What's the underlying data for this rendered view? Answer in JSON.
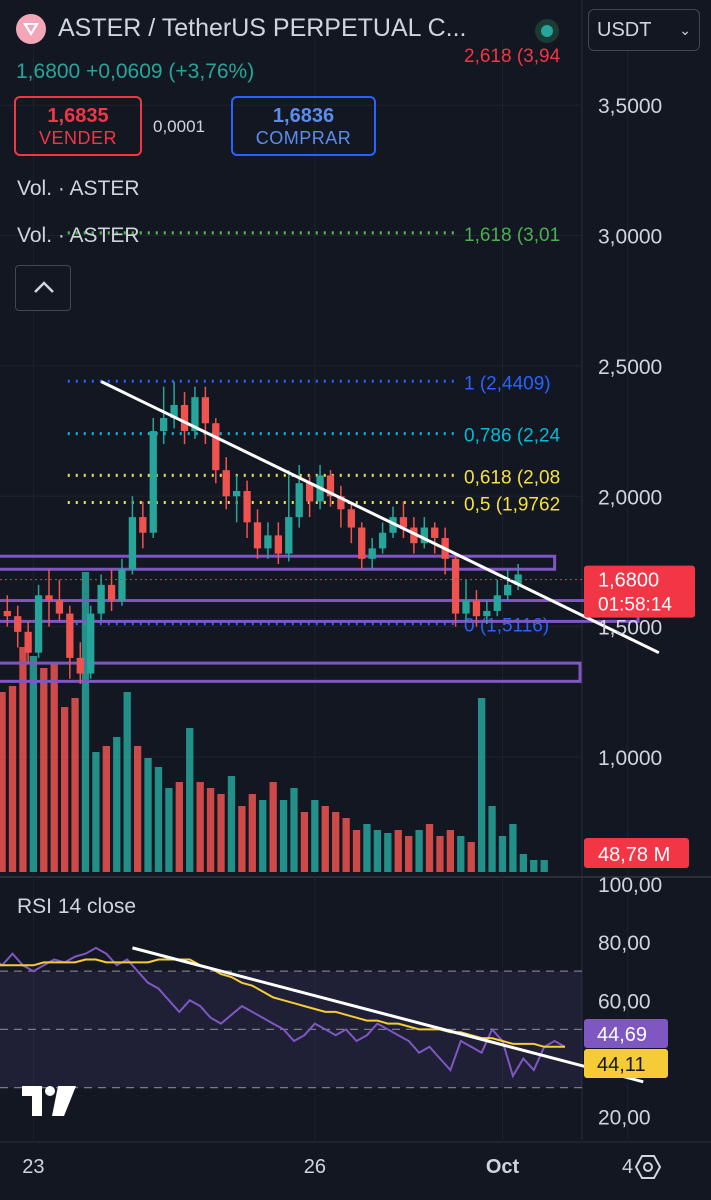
{
  "header": {
    "symbol_title": "ASTER / TetherUS PERPETUAL C...",
    "currency": "USDT",
    "last_and_change": "1,6800  +0,0609 (+3,76%)",
    "sell_price": "1,6835",
    "sell_label": "VENDER",
    "buy_price": "1,6836",
    "buy_label": "COMPRAR",
    "spread": "0,0001"
  },
  "indicators": {
    "vol_label_1": "Vol. · ASTER",
    "vol_label_2": "Vol. · ASTER",
    "rsi_title": "RSI 14 close"
  },
  "colors": {
    "up": "#26a69a",
    "down": "#ef5350",
    "bg": "#131722",
    "zone": "#7e57c2",
    "rsi": "#7e57c2",
    "rsi_ma": "#f5cc38"
  },
  "chart_data": {
    "type": "candlestick",
    "price_axis": {
      "ticks": [
        1.0,
        1.5,
        2.0,
        2.5,
        3.0,
        3.5
      ],
      "tick_labels": [
        "1,0000",
        "1,5000",
        "2,0000",
        "2,5000",
        "3,0000",
        "3,5000"
      ],
      "range": [
        0.95,
        3.75
      ]
    },
    "time_axis": {
      "labels": [
        {
          "label": "23",
          "t": 0
        },
        {
          "label": "26",
          "t": 27
        },
        {
          "label": "Oct",
          "t": 45
        },
        {
          "label": "4",
          "t": 57
        }
      ],
      "range": [
        -3.2,
        65
      ]
    },
    "last_price": {
      "value": 1.68,
      "label": "1,6800",
      "countdown": "01:58:14"
    },
    "fib_levels": [
      {
        "value": 3.94,
        "label": "2,618 (3,94",
        "color": "#f23645"
      },
      {
        "value": 3.01,
        "label": "1,618 (3,01",
        "color": "#4caf50"
      },
      {
        "value": 2.4409,
        "label": "1 (2,4409)",
        "color": "#2962ff"
      },
      {
        "value": 2.24,
        "label": "0,786 (2,24",
        "color": "#00bcd4"
      },
      {
        "value": 2.08,
        "label": "0,618 (2,08",
        "color": "#f5e142"
      },
      {
        "value": 1.9762,
        "label": "0,5 (1,9762",
        "color": "#f5e142"
      },
      {
        "value": 1.5116,
        "label": "0 (1,5116)",
        "color": "#2962ff"
      }
    ],
    "zones": [
      {
        "low": 1.72,
        "high": 1.77,
        "t_end": 50
      },
      {
        "low": 1.52,
        "high": 1.6,
        "t_end": 58
      },
      {
        "low": 1.29,
        "high": 1.36,
        "t_end": 74
      }
    ],
    "trendline": {
      "start": [
        6.5,
        2.44
      ],
      "end": [
        60,
        1.4
      ]
    },
    "candles": [
      [
        1.56,
        1.54,
        1.62,
        1.5
      ],
      [
        1.54,
        1.48,
        1.58,
        1.42
      ],
      [
        1.48,
        1.4,
        1.52,
        1.36
      ],
      [
        1.4,
        1.62,
        1.66,
        1.38
      ],
      [
        1.62,
        1.6,
        1.72,
        1.5
      ],
      [
        1.6,
        1.55,
        1.68,
        1.52
      ],
      [
        1.55,
        1.38,
        1.58,
        1.3
      ],
      [
        1.38,
        1.32,
        1.44,
        1.28
      ],
      [
        1.32,
        1.55,
        1.58,
        1.3
      ],
      [
        1.55,
        1.66,
        1.7,
        1.52
      ],
      [
        1.66,
        1.6,
        1.72,
        1.56
      ],
      [
        1.6,
        1.72,
        1.76,
        1.58
      ],
      [
        1.72,
        1.92,
        2.0,
        1.7
      ],
      [
        1.92,
        1.86,
        1.98,
        1.8
      ],
      [
        1.86,
        2.25,
        2.3,
        1.84
      ],
      [
        2.25,
        2.3,
        2.42,
        2.2
      ],
      [
        2.3,
        2.35,
        2.44,
        2.26
      ],
      [
        2.35,
        2.25,
        2.4,
        2.2
      ],
      [
        2.25,
        2.38,
        2.42,
        2.22
      ],
      [
        2.38,
        2.28,
        2.42,
        2.2
      ],
      [
        2.28,
        2.1,
        2.3,
        2.05
      ],
      [
        2.1,
        2.0,
        2.15,
        1.95
      ],
      [
        2.0,
        2.02,
        2.08,
        1.9
      ],
      [
        2.02,
        1.9,
        2.06,
        1.84
      ],
      [
        1.9,
        1.8,
        1.95,
        1.76
      ],
      [
        1.8,
        1.85,
        1.9,
        1.76
      ],
      [
        1.85,
        1.78,
        1.9,
        1.74
      ],
      [
        1.78,
        1.92,
        2.1,
        1.75
      ],
      [
        1.92,
        2.05,
        2.12,
        1.88
      ],
      [
        2.05,
        1.98,
        2.08,
        1.92
      ],
      [
        1.98,
        2.08,
        2.12,
        1.95
      ],
      [
        2.08,
        2.0,
        2.1,
        1.96
      ],
      [
        2.0,
        1.95,
        2.04,
        1.88
      ],
      [
        1.95,
        1.88,
        1.98,
        1.82
      ],
      [
        1.88,
        1.76,
        1.9,
        1.72
      ],
      [
        1.76,
        1.8,
        1.84,
        1.72
      ],
      [
        1.8,
        1.86,
        1.9,
        1.78
      ],
      [
        1.86,
        1.92,
        1.96,
        1.84
      ],
      [
        1.92,
        1.88,
        1.98,
        1.84
      ],
      [
        1.88,
        1.82,
        1.92,
        1.78
      ],
      [
        1.82,
        1.88,
        1.92,
        1.8
      ],
      [
        1.88,
        1.84,
        1.9,
        1.78
      ],
      [
        1.84,
        1.76,
        1.88,
        1.7
      ],
      [
        1.76,
        1.55,
        1.78,
        1.5
      ],
      [
        1.55,
        1.6,
        1.68,
        1.52
      ],
      [
        1.6,
        1.54,
        1.64,
        1.5
      ],
      [
        1.54,
        1.56,
        1.6,
        1.51
      ],
      [
        1.56,
        1.62,
        1.68,
        1.54
      ],
      [
        1.62,
        1.66,
        1.72,
        1.6
      ],
      [
        1.66,
        1.7,
        1.74,
        1.64
      ]
    ],
    "volume": {
      "last_label": "48,78 M",
      "values": [
        60,
        62,
        75,
        72,
        68,
        70,
        55,
        58,
        100,
        40,
        42,
        45,
        60,
        42,
        38,
        35,
        28,
        30,
        48,
        30,
        28,
        26,
        32,
        22,
        26,
        24,
        30,
        24,
        28,
        20,
        24,
        22,
        20,
        18,
        14,
        16,
        14,
        13,
        14,
        12,
        14,
        16,
        12,
        14,
        12,
        10,
        58,
        22,
        12,
        16,
        6,
        4,
        4
      ]
    },
    "rsi": {
      "axis_ticks": [
        20,
        40,
        60,
        80,
        100
      ],
      "tick_labels": [
        "20,00",
        "",
        "60,00",
        "80,00",
        "100,00"
      ],
      "range": [
        12,
        102
      ],
      "upper_band": 70,
      "mid": 50,
      "lower_band": 30,
      "rsi_value": 44.69,
      "rsi_label": "44,69",
      "ma_value": 44.11,
      "ma_label": "44,11",
      "rsi_series": [
        72,
        68,
        70,
        74,
        71,
        72,
        75,
        72,
        76,
        72,
        70,
        72,
        74,
        73,
        75,
        76,
        78,
        76,
        72,
        74,
        70,
        66,
        64,
        60,
        56,
        60,
        58,
        54,
        52,
        55,
        58,
        56,
        54,
        52,
        50,
        46,
        48,
        52,
        50,
        48,
        50,
        46,
        48,
        52,
        50,
        48,
        46,
        42,
        44,
        40,
        36,
        46,
        44,
        42,
        50,
        46,
        34,
        40,
        36,
        44,
        46,
        44
      ],
      "ma_series": [
        72,
        72,
        72,
        72,
        72,
        73,
        73,
        73,
        73,
        74,
        74,
        73,
        73,
        73,
        73,
        73,
        74,
        74,
        74,
        74,
        72,
        71,
        69,
        68,
        66,
        65,
        63,
        61,
        60,
        59,
        58,
        57,
        56,
        56,
        55,
        54,
        53,
        53,
        52,
        52,
        51,
        50,
        50,
        50,
        49,
        49,
        48,
        47,
        47,
        46,
        45,
        45,
        45,
        44,
        44,
        44,
        44,
        44,
        44,
        44,
        44,
        44
      ],
      "trendline": {
        "start": [
          9.5,
          78
        ],
        "end": [
          58.5,
          32
        ]
      }
    }
  }
}
